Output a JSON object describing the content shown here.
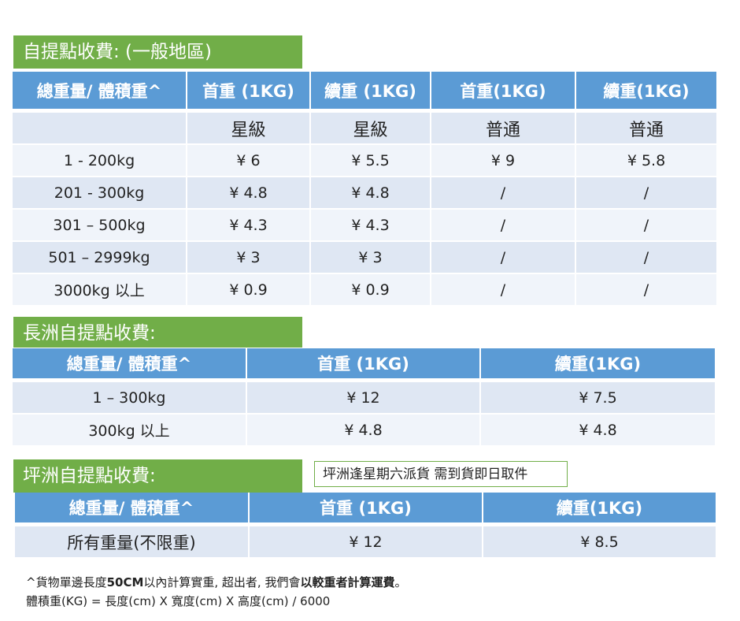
{
  "section1": {
    "title": "自提點收費: (一般地區)",
    "headers": [
      "總重量/ 體積重^",
      "首重 (1KG)",
      "續重 (1KG)",
      "首重(1KG)",
      "續重(1KG)"
    ],
    "subheader": [
      "",
      "星級",
      "星級",
      "普通",
      "普通"
    ],
    "rows": [
      [
        "1 - 200kg",
        "¥ 6",
        "¥ 5.5",
        "¥ 9",
        "¥ 5.8"
      ],
      [
        "201 - 300kg",
        "¥ 4.8",
        "¥ 4.8",
        "/",
        "/"
      ],
      [
        "301 – 500kg",
        "¥ 4.3",
        "¥ 4.3",
        "/",
        "/"
      ],
      [
        "501 – 2999kg",
        "¥ 3",
        "¥ 3",
        "/",
        "/"
      ],
      [
        "3000kg 以上",
        "¥ 0.9",
        "¥ 0.9",
        "/",
        "/"
      ]
    ]
  },
  "section2": {
    "title": "長洲自提點收費:",
    "headers": [
      "總重量/ 體積重^",
      "首重 (1KG)",
      "續重(1KG)"
    ],
    "rows": [
      [
        "1 – 300kg",
        "¥ 12",
        "¥ 7.5"
      ],
      [
        "300kg 以上",
        "¥ 4.8",
        "¥ 4.8"
      ]
    ]
  },
  "section3": {
    "title": "坪洲自提點收費:",
    "note": "坪洲逢星期六派貨 需到貨即日取件",
    "headers": [
      "總重量/ 體積重^",
      "首重 (1KG)",
      "續重(1KG)"
    ],
    "rows": [
      [
        "所有重量(不限重)",
        "¥ 12",
        "¥ 8.5"
      ]
    ]
  },
  "footnote": {
    "line1_a": "^貨物單邊長度",
    "line1_b": "50CM",
    "line1_c": "以內計算實重, 超出者, 我們會",
    "line1_d": "以較重者計算運費",
    "line1_e": "。",
    "line2": "體積重(KG) = 長度(cm) X 寬度(cm) X 高度(cm) / 6000"
  },
  "colors": {
    "header_blue": "#5b9bd5",
    "title_green": "#71ae48",
    "row_light": "#dfe7f3",
    "row_lighter": "#f0f4fa"
  }
}
